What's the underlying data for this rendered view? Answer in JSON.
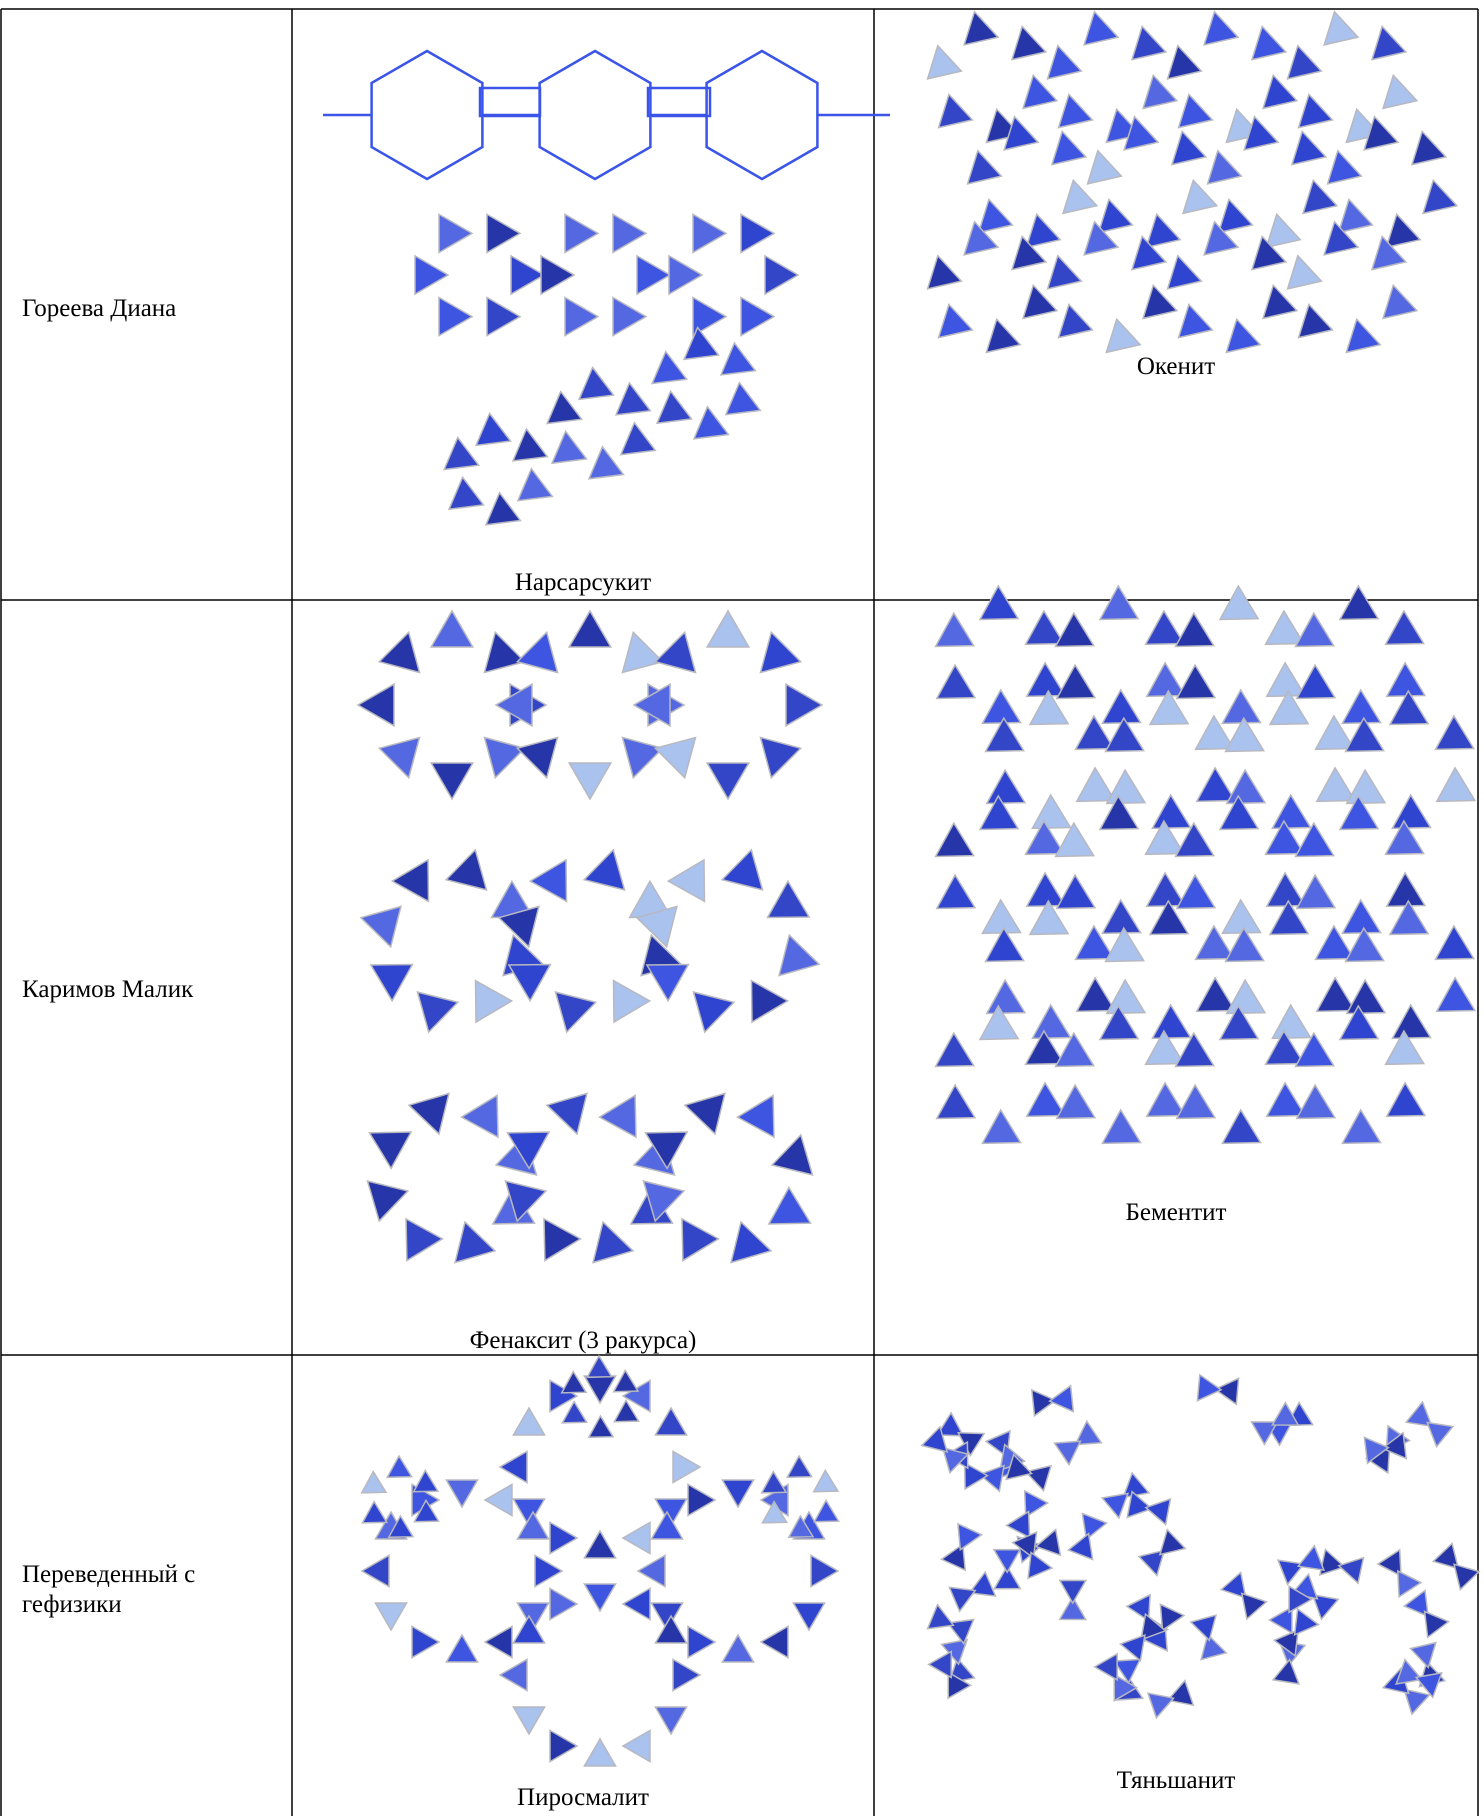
{
  "table": {
    "rows": [
      {
        "name": "Гореева Диана",
        "left_caption": "Нарсарсукит",
        "right_caption": "Окенит"
      },
      {
        "name": "Каримов Малик",
        "left_caption": "Фенаксит (3 ракурса)",
        "right_caption": "Бементит"
      },
      {
        "name": "Переведенный с гефизики",
        "left_caption": "Пиросмалит",
        "right_caption": "Тяньшанит"
      }
    ]
  }
}
